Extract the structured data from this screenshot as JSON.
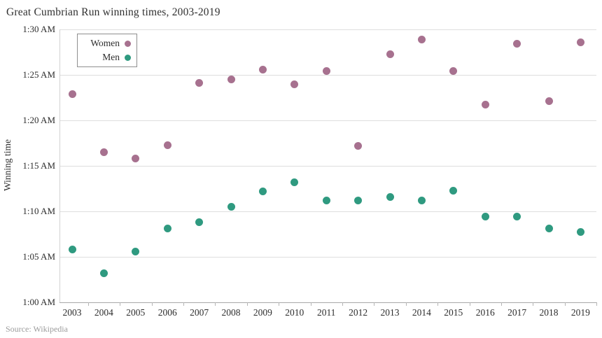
{
  "header": {
    "title": "Great Cumbrian Run winning times, 2003-2019"
  },
  "footer": {
    "source": "Source: Wikipedia"
  },
  "chart_data": {
    "type": "scatter",
    "title": "Great Cumbrian Run winning times, 2003-2019",
    "xlabel": "",
    "ylabel": "Winning time",
    "x": [
      "2003",
      "2004",
      "2005",
      "2006",
      "2007",
      "2008",
      "2009",
      "2010",
      "2011",
      "2012",
      "2013",
      "2014",
      "2015",
      "2016",
      "2017",
      "2018",
      "2019"
    ],
    "y_axis": {
      "tick_labels": [
        "1:00 AM",
        "1:05 AM",
        "1:10 AM",
        "1:15 AM",
        "1:20 AM",
        "1:25 AM",
        "1:30 AM"
      ],
      "unit": "winning time displayed as h:mm; numeric values below are minutes after 1:00",
      "range_minutes": [
        0,
        30
      ]
    },
    "grid": "horizontal",
    "legend": {
      "position": "top-left-inside",
      "entries": [
        "Women",
        "Men"
      ]
    },
    "series": [
      {
        "name": "Women",
        "color": "#a7718f",
        "minutes_after_1am": [
          22.9,
          16.5,
          15.8,
          17.3,
          24.1,
          24.5,
          25.6,
          24.0,
          25.4,
          17.2,
          27.3,
          28.9,
          25.4,
          21.7,
          28.4,
          22.1,
          28.6
        ]
      },
      {
        "name": "Men",
        "color": "#2f9a80",
        "minutes_after_1am": [
          5.8,
          3.2,
          5.6,
          8.1,
          8.8,
          10.5,
          12.2,
          13.2,
          11.2,
          11.2,
          11.6,
          11.2,
          12.3,
          9.4,
          9.4,
          8.1,
          7.7
        ]
      }
    ]
  }
}
